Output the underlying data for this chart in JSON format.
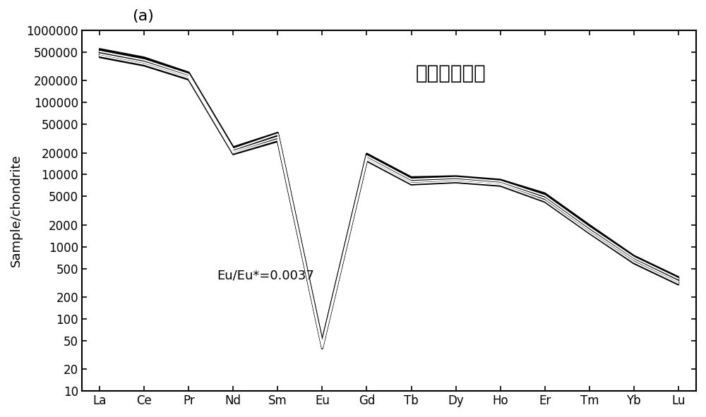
{
  "title": "(a)",
  "chinese_label": "李家沟独居石",
  "annotation": "Eu/Eu*=0.0037",
  "ylabel": "Sample/chondrite",
  "elements": [
    "La",
    "Ce",
    "Pr",
    "Nd",
    "Sm",
    "Eu",
    "Gd",
    "Tb",
    "Dy",
    "Ho",
    "Er",
    "Tm",
    "Yb",
    "Lu"
  ],
  "ylim_log": [
    10,
    1000000
  ],
  "yticks": [
    10,
    20,
    50,
    100,
    200,
    500,
    1000,
    2000,
    5000,
    10000,
    20000,
    50000,
    100000,
    200000,
    500000,
    1000000
  ],
  "background_color": "#ffffff",
  "samples": [
    [
      500000,
      380000,
      240000,
      22000,
      35000,
      45,
      18000,
      8500,
      9000,
      8000,
      5000,
      1800,
      700,
      350
    ],
    [
      550000,
      420000,
      260000,
      24000,
      38000,
      50,
      19500,
      9200,
      9500,
      8500,
      5500,
      2000,
      750,
      380
    ],
    [
      470000,
      360000,
      230000,
      21000,
      33000,
      43,
      17000,
      8000,
      8500,
      7600,
      4700,
      1700,
      660,
      330
    ],
    [
      460000,
      350000,
      225000,
      20500,
      32000,
      42,
      16500,
      7800,
      8200,
      7400,
      4500,
      1650,
      640,
      320
    ],
    [
      520000,
      395000,
      250000,
      23000,
      36000,
      47,
      18500,
      8700,
      9200,
      8200,
      5200,
      1900,
      720,
      365
    ],
    [
      440000,
      335000,
      215000,
      19800,
      30000,
      40,
      16000,
      7500,
      8000,
      7200,
      4300,
      1580,
      610,
      310
    ],
    [
      475000,
      362000,
      232000,
      21200,
      33500,
      44,
      17200,
      8100,
      8600,
      7700,
      4800,
      1720,
      670,
      335
    ],
    [
      510000,
      388000,
      245000,
      22500,
      36500,
      46,
      18200,
      8600,
      9100,
      8100,
      5100,
      1850,
      710,
      360
    ],
    [
      455000,
      347000,
      222000,
      20200,
      31000,
      41,
      16200,
      7600,
      8100,
      7300,
      4400,
      1600,
      620,
      315
    ],
    [
      490000,
      373000,
      238000,
      21800,
      34000,
      45,
      17500,
      8200,
      8700,
      7800,
      4900,
      1760,
      685,
      342
    ],
    [
      425000,
      325000,
      208000,
      19200,
      29000,
      39,
      15500,
      7300,
      7800,
      7000,
      4200,
      1540,
      590,
      300
    ],
    [
      535000,
      407000,
      255000,
      23500,
      37500,
      48,
      18700,
      8800,
      9300,
      8300,
      5300,
      1950,
      740,
      375
    ],
    [
      445000,
      340000,
      218000,
      20000,
      30500,
      40,
      16100,
      7550,
      8050,
      7250,
      4350,
      1590,
      615,
      312
    ],
    [
      505000,
      385000,
      242000,
      22200,
      35500,
      46,
      18000,
      8550,
      9050,
      8050,
      5050,
      1825,
      705,
      357
    ],
    [
      465000,
      355000,
      228000,
      20800,
      32500,
      42,
      16700,
      7850,
      8300,
      7500,
      4600,
      1670,
      648,
      328
    ]
  ],
  "white_line_indices": [
    2,
    7,
    12
  ],
  "figsize": [
    10.0,
    5.91
  ],
  "dpi": 100
}
